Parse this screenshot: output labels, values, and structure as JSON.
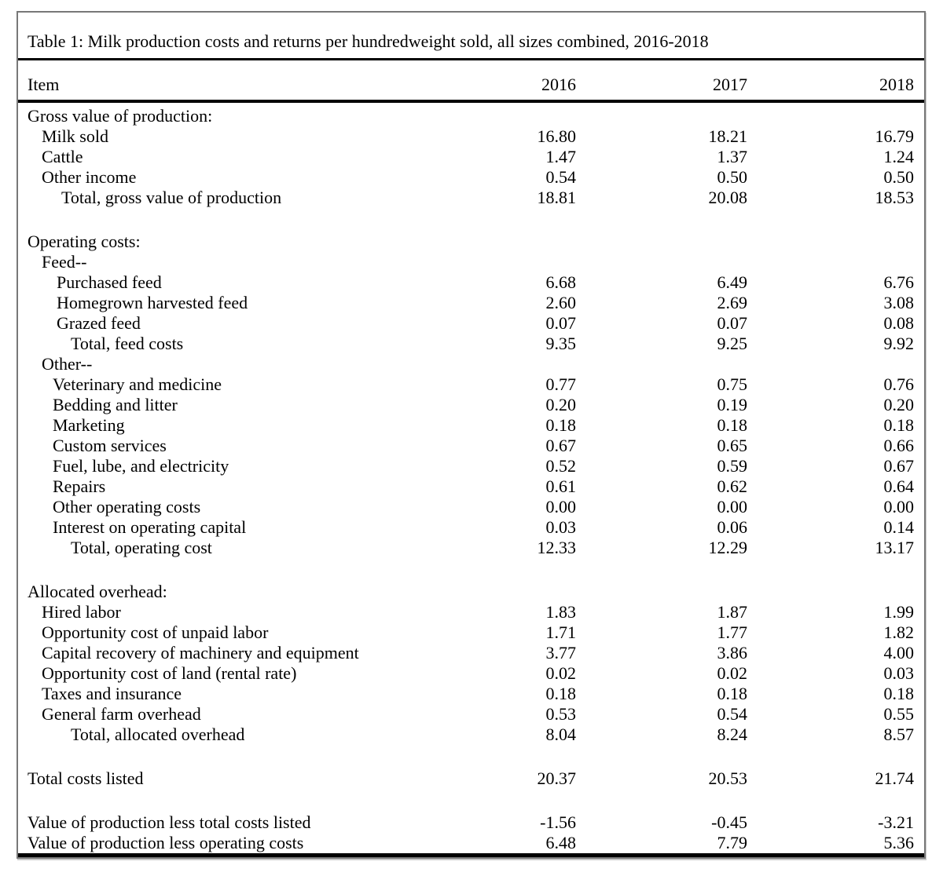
{
  "table": {
    "title": "Table 1: Milk production costs and returns per hundredweight sold, all sizes combined, 2016-2018",
    "columns": [
      "Item",
      "2016",
      "2017",
      "2018"
    ],
    "rows": [
      {
        "label": "Gross value of production:",
        "indent": 0,
        "values": [
          "",
          "",
          ""
        ]
      },
      {
        "label": "Milk sold",
        "indent": 1,
        "values": [
          "16.80",
          "18.21",
          "16.79"
        ]
      },
      {
        "label": "Cattle",
        "indent": 1,
        "values": [
          "1.47",
          "1.37",
          "1.24"
        ]
      },
      {
        "label": "Other income",
        "indent": 1,
        "values": [
          "0.54",
          "0.50",
          "0.50"
        ]
      },
      {
        "label": "Total, gross value of production",
        "indent": 4,
        "values": [
          "18.81",
          "20.08",
          "18.53"
        ]
      },
      {
        "label": "",
        "indent": 0,
        "values": [
          "",
          "",
          ""
        ],
        "blank": true
      },
      {
        "label": "Operating costs:",
        "indent": 0,
        "values": [
          "",
          "",
          ""
        ]
      },
      {
        "label": "Feed--",
        "indent": 1,
        "values": [
          "",
          "",
          ""
        ]
      },
      {
        "label": "Purchased feed",
        "indent": 3,
        "values": [
          "6.68",
          "6.49",
          "6.76"
        ]
      },
      {
        "label": "Homegrown harvested feed",
        "indent": 3,
        "values": [
          "2.60",
          "2.69",
          "3.08"
        ]
      },
      {
        "label": "Grazed feed",
        "indent": 3,
        "values": [
          "0.07",
          "0.07",
          "0.08"
        ]
      },
      {
        "label": "Total, feed costs",
        "indent": 5,
        "values": [
          "9.35",
          "9.25",
          "9.92"
        ]
      },
      {
        "label": "Other--",
        "indent": 1,
        "values": [
          "",
          "",
          ""
        ]
      },
      {
        "label": "Veterinary and medicine",
        "indent": 2,
        "values": [
          "0.77",
          "0.75",
          "0.76"
        ]
      },
      {
        "label": "Bedding and litter",
        "indent": 2,
        "values": [
          "0.20",
          "0.19",
          "0.20"
        ]
      },
      {
        "label": "Marketing",
        "indent": 2,
        "values": [
          "0.18",
          "0.18",
          "0.18"
        ]
      },
      {
        "label": "Custom services",
        "indent": 2,
        "values": [
          "0.67",
          "0.65",
          "0.66"
        ]
      },
      {
        "label": "Fuel, lube, and electricity",
        "indent": 2,
        "values": [
          "0.52",
          "0.59",
          "0.67"
        ]
      },
      {
        "label": "Repairs",
        "indent": 2,
        "values": [
          "0.61",
          "0.62",
          "0.64"
        ]
      },
      {
        "label": "Other operating costs",
        "indent": 2,
        "values": [
          "0.00",
          "0.00",
          "0.00"
        ]
      },
      {
        "label": "Interest on operating capital",
        "indent": 2,
        "values": [
          "0.03",
          "0.06",
          "0.14"
        ]
      },
      {
        "label": "Total, operating cost",
        "indent": 5,
        "values": [
          "12.33",
          "12.29",
          "13.17"
        ]
      },
      {
        "label": "",
        "indent": 0,
        "values": [
          "",
          "",
          ""
        ],
        "blank": true
      },
      {
        "label": "Allocated overhead:",
        "indent": 0,
        "values": [
          "",
          "",
          ""
        ]
      },
      {
        "label": "Hired labor",
        "indent": 1,
        "values": [
          "1.83",
          "1.87",
          "1.99"
        ]
      },
      {
        "label": "Opportunity cost of unpaid labor",
        "indent": 1,
        "values": [
          "1.71",
          "1.77",
          "1.82"
        ]
      },
      {
        "label": "Capital recovery of machinery and equipment",
        "indent": 1,
        "values": [
          "3.77",
          "3.86",
          "4.00"
        ]
      },
      {
        "label": "Opportunity cost of land (rental rate)",
        "indent": 1,
        "values": [
          "0.02",
          "0.02",
          "0.03"
        ]
      },
      {
        "label": "Taxes and insurance",
        "indent": 1,
        "values": [
          "0.18",
          "0.18",
          "0.18"
        ]
      },
      {
        "label": "General farm overhead",
        "indent": 1,
        "values": [
          "0.53",
          "0.54",
          "0.55"
        ]
      },
      {
        "label": "Total, allocated overhead",
        "indent": 5,
        "values": [
          "8.04",
          "8.24",
          "8.57"
        ]
      },
      {
        "label": "",
        "indent": 0,
        "values": [
          "",
          "",
          ""
        ],
        "blank": true
      },
      {
        "label": "Total costs listed",
        "indent": 0,
        "values": [
          "20.37",
          "20.53",
          "21.74"
        ]
      },
      {
        "label": "",
        "indent": 0,
        "values": [
          "",
          "",
          ""
        ],
        "blank": true
      },
      {
        "label": "Value of production less total costs listed",
        "indent": 0,
        "values": [
          "-1.56",
          "-0.45",
          "-3.21"
        ]
      },
      {
        "label": "Value of production less operating costs",
        "indent": 0,
        "values": [
          "6.48",
          "7.79",
          "5.36"
        ]
      }
    ]
  }
}
